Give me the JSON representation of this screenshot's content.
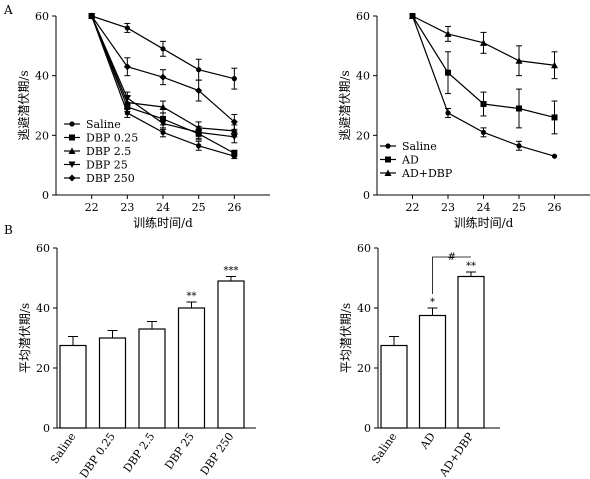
{
  "panel_labels": [
    "A",
    "B"
  ],
  "chart_data": [
    {
      "id": "A-left",
      "type": "line",
      "x": [
        22,
        23,
        24,
        25,
        26
      ],
      "xlim": [
        21,
        27
      ],
      "ylim": [
        0,
        60
      ],
      "yticks": [
        0,
        20,
        40,
        60
      ],
      "xlabel": "训练时间/d",
      "ylabel": "逃避潜伏期/s",
      "legend_position": "bottom-left",
      "series": [
        {
          "name": "Saline",
          "marker": "circle",
          "values": [
            60,
            27.5,
            21,
            16.5,
            13
          ],
          "errors": [
            0,
            1.5,
            1.5,
            1.5,
            0.8
          ]
        },
        {
          "name": "DBP 0.25",
          "marker": "square",
          "values": [
            60,
            29.5,
            25.5,
            20.5,
            14
          ],
          "errors": [
            0,
            1.5,
            2,
            2,
            1
          ]
        },
        {
          "name": "DBP 2.5",
          "marker": "triangle-up",
          "values": [
            60,
            31,
            29.5,
            22.5,
            21.5
          ],
          "errors": [
            0,
            2,
            2,
            2,
            2
          ]
        },
        {
          "name": "DBP 25",
          "marker": "triangle-down",
          "values": [
            60,
            32.5,
            24,
            21,
            19.5
          ],
          "errors": [
            0,
            2,
            2,
            2,
            2
          ]
        },
        {
          "name": "DBP 250",
          "marker": "diamond",
          "values": [
            60,
            43,
            39.5,
            35,
            24.5
          ],
          "errors": [
            0,
            3,
            2.5,
            3.5,
            2.5
          ]
        },
        {
          "name": "",
          "marker": "circle",
          "values": [
            60,
            56,
            49,
            42,
            39
          ],
          "errors": [
            0,
            1.5,
            2.5,
            3.5,
            3.5
          ]
        }
      ]
    },
    {
      "id": "A-right",
      "type": "line",
      "x": [
        22,
        23,
        24,
        25,
        26
      ],
      "xlim": [
        21,
        27
      ],
      "ylim": [
        0,
        60
      ],
      "yticks": [
        0,
        20,
        40,
        60
      ],
      "xlabel": "训练时间/d",
      "ylabel": "逃避潜伏期/s",
      "legend_position": "bottom-left",
      "series": [
        {
          "name": "Saline",
          "marker": "circle",
          "values": [
            60,
            27.5,
            21,
            16.5,
            13
          ],
          "errors": [
            0,
            1.5,
            1.5,
            1.5,
            0
          ]
        },
        {
          "name": "AD",
          "marker": "square",
          "values": [
            60,
            41,
            30.5,
            29,
            26
          ],
          "errors": [
            0,
            7,
            4,
            6.5,
            5.5
          ]
        },
        {
          "name": "AD+DBP",
          "marker": "triangle-up",
          "values": [
            60,
            54,
            51,
            45,
            43.5
          ],
          "errors": [
            0,
            2.5,
            3.5,
            5,
            4.5
          ]
        }
      ]
    },
    {
      "id": "B-left",
      "type": "bar",
      "categories": [
        "Saline",
        "DBP 0.25",
        "DBP 2.5",
        "DBP 25",
        "DBP 250"
      ],
      "values": [
        27.5,
        30,
        33,
        40,
        49
      ],
      "errors": [
        3,
        2.5,
        2.5,
        2,
        1.5
      ],
      "significance": [
        "",
        "",
        "",
        "**",
        "***"
      ],
      "ylim": [
        0,
        60
      ],
      "yticks": [
        0,
        20,
        40,
        60
      ],
      "ylabel": "平均潜伏期/s"
    },
    {
      "id": "B-right",
      "type": "bar",
      "categories": [
        "Saline",
        "AD",
        "AD+DBP"
      ],
      "values": [
        27.5,
        37.5,
        50.5
      ],
      "errors": [
        3,
        2.5,
        1.5
      ],
      "significance": [
        "",
        "*",
        "**"
      ],
      "bracket": {
        "label": "#",
        "from": 1,
        "to": 2
      },
      "ylim": [
        0,
        60
      ],
      "yticks": [
        0,
        20,
        40,
        60
      ],
      "ylabel": "平均潜伏期/s"
    }
  ]
}
